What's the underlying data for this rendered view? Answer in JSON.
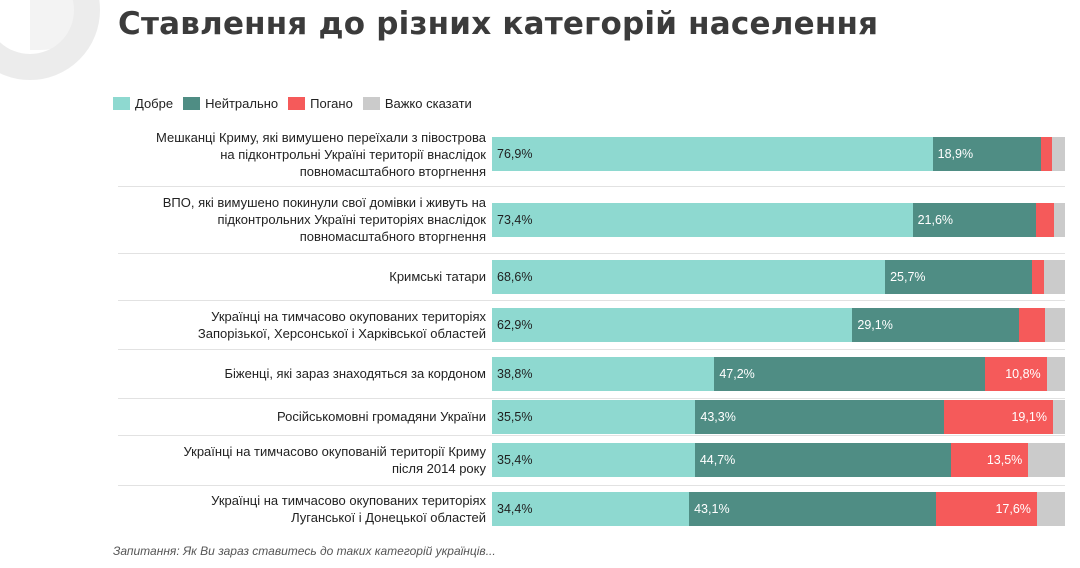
{
  "title": "Ставлення до різних категорій населення",
  "footnote": "Запитання: Як Ви зараз ставитесь до таких категорій українців...",
  "colors": {
    "good": "#8ed9d0",
    "neutral": "#4f8d84",
    "bad": "#f55a5a",
    "hard": "#cbcbcb"
  },
  "chart_data": {
    "type": "bar",
    "orientation": "horizontal",
    "stacked": true,
    "title": "Ставлення до різних категорій населення",
    "legend": [
      "Добре",
      "Нейтрально",
      "Погано",
      "Важко сказати"
    ],
    "legend_position": "top-left",
    "categories": [
      [
        "Мешканці Криму, які вимушено переїхали з півострова",
        "на підконтрольні Україні території внаслідок",
        "повномасштабного вторгнення"
      ],
      [
        "ВПО, які вимушено покинули свої домівки і живуть на",
        "підконтрольних Україні територіях внаслідок",
        "повномасштабного вторгнення"
      ],
      [
        "Кримські татари"
      ],
      [
        "Українці на тимчасово окупованих територіях",
        "Запорізької, Херсонської і Харківської областей"
      ],
      [
        "Біженці, які зараз знаходяться за кордоном"
      ],
      [
        "Російськомовні громадяни України"
      ],
      [
        "Українці на тимчасово окупованій території Криму",
        "після 2014 року"
      ],
      [
        "Українці на тимчасово окупованих територіях",
        "Луганської і Донецької областей"
      ]
    ],
    "series": [
      {
        "name": "Добре",
        "key": "good",
        "values": [
          76.9,
          73.4,
          68.6,
          62.9,
          38.8,
          35.5,
          35.4,
          34.4
        ],
        "labels": [
          "76,9%",
          "73,4%",
          "68,6%",
          "62,9%",
          "38,8%",
          "35,5%",
          "35,4%",
          "34,4%"
        ]
      },
      {
        "name": "Нейтрально",
        "key": "neutral",
        "values": [
          18.9,
          21.6,
          25.7,
          29.1,
          47.2,
          43.3,
          44.7,
          43.1
        ],
        "labels": [
          "18,9%",
          "21,6%",
          "25,7%",
          "29,1%",
          "47,2%",
          "43,3%",
          "44,7%",
          "43,1%"
        ]
      },
      {
        "name": "Погано",
        "key": "bad",
        "values": [
          2.0,
          3.0,
          2.0,
          4.5,
          10.8,
          19.1,
          13.5,
          17.6
        ],
        "labels": [
          "",
          "",
          "",
          "",
          "10,8%",
          "19,1%",
          "13,5%",
          "17,6%"
        ]
      },
      {
        "name": "Важко сказати",
        "key": "hard",
        "values": [
          2.2,
          2.0,
          3.7,
          3.5,
          3.2,
          2.1,
          6.4,
          4.9
        ],
        "labels": [
          "",
          "",
          "",
          "",
          "",
          "",
          "",
          ""
        ]
      }
    ],
    "xlim": [
      0,
      100
    ]
  }
}
